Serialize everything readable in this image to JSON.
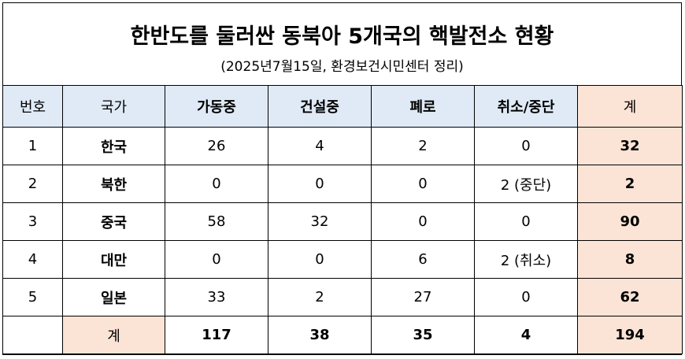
{
  "title": "한반도를 둘러싼 동북아 5개국의 핵발전소 현황",
  "subtitle": "(2025년7월15일, 환경보건시민센터 정리)",
  "headers": [
    "번호",
    "국가",
    "가동중",
    "건설중",
    "폐로",
    "취소/중단",
    "계"
  ],
  "rows": [
    {
      "no": "1",
      "country": "한국",
      "operating": "26",
      "construction": "4",
      "decommissioned": "2",
      "cancelled": "0",
      "total": "32"
    },
    {
      "no": "2",
      "country": "북한",
      "operating": "0",
      "construction": "0",
      "decommissioned": "0",
      "cancelled": "2 (중단)",
      "total": "2"
    },
    {
      "no": "3",
      "country": "중국",
      "operating": "58",
      "construction": "32",
      "decommissioned": "0",
      "cancelled": "0",
      "total": "90"
    },
    {
      "no": "4",
      "country": "대만",
      "operating": "0",
      "construction": "0",
      "decommissioned": "6",
      "cancelled": "2 (취소)",
      "total": "8"
    },
    {
      "no": "5",
      "country": "일본",
      "operating": "33",
      "construction": "2",
      "decommissioned": "27",
      "cancelled": "0",
      "total": "62"
    }
  ],
  "sum_row": {
    "label": "계",
    "operating": "117",
    "construction": "38",
    "decommissioned": "35",
    "cancelled": "4",
    "total": "194"
  },
  "colors": {
    "header_bg": "#dfeaf6",
    "total_bg": "#fbe4d6"
  }
}
